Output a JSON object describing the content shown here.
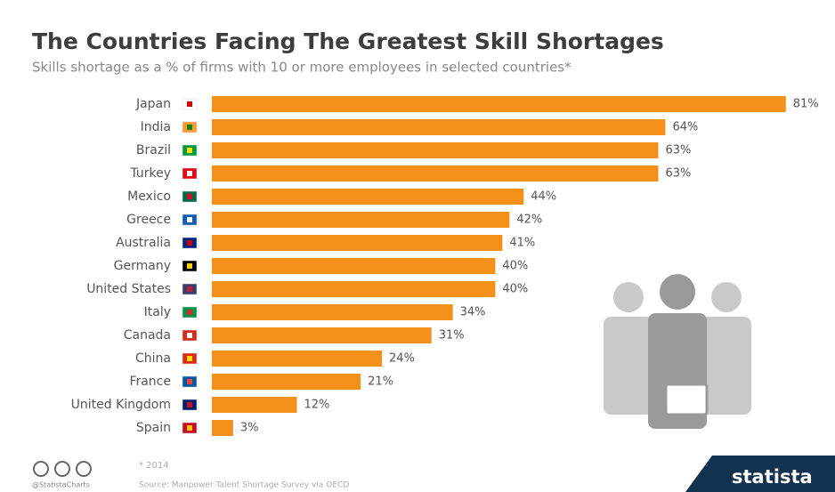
{
  "chart_data": {
    "type": "bar",
    "orientation": "horizontal",
    "title": "The Countries Facing The Greatest Skill Shortages",
    "subtitle": "Skills shortage as a % of firms with 10 or more employees in selected countries*",
    "categories": [
      "Japan",
      "India",
      "Brazil",
      "Turkey",
      "Mexico",
      "Greece",
      "Australia",
      "Germany",
      "United States",
      "Italy",
      "Canada",
      "China",
      "France",
      "United Kingdom",
      "Spain"
    ],
    "values": [
      81,
      64,
      63,
      63,
      44,
      42,
      41,
      40,
      40,
      34,
      31,
      24,
      21,
      12,
      3
    ],
    "value_labels": [
      "81%",
      "64%",
      "63%",
      "63%",
      "44%",
      "42%",
      "41%",
      "40%",
      "40%",
      "34%",
      "31%",
      "24%",
      "21%",
      "12%",
      "3%"
    ],
    "color": "#f39019",
    "note": "* 2014",
    "credit": "@StatistaCharts",
    "source": "Source: Manpower Talent Shortage Survey via OECD",
    "brand": "statista"
  }
}
